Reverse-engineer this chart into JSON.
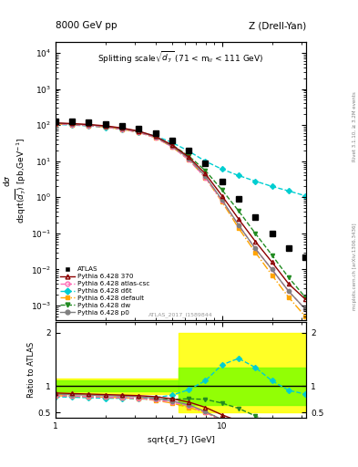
{
  "title_left": "8000 GeV pp",
  "title_right": "Z (Drell-Yan)",
  "plot_title": "Splitting scale $\\sqrt{d_7}$ (71 < m$_{ll}$ < 111 GeV)",
  "xlabel": "sqrt{d_7} [GeV]",
  "ylabel_main": "d$\\sigma$\ndsqrt(d$_7$) [pb,GeV$^{-1}$]",
  "ylabel_ratio": "Ratio to ATLAS",
  "right_label_top": "Rivet 3.1.10, ≥ 3.2M events",
  "right_label_bot": "mcplots.cern.ch [arXiv:1306.3436]",
  "watermark": "ATLAS_2017_I1589844",
  "x_data": [
    1.0,
    1.26,
    1.58,
    2.0,
    2.51,
    3.16,
    3.98,
    5.01,
    6.31,
    7.94,
    10.0,
    12.58,
    15.85,
    19.95,
    25.12,
    31.62
  ],
  "atlas_y": [
    130,
    125,
    118,
    108,
    96,
    80,
    60,
    38,
    20,
    8.5,
    2.8,
    0.9,
    0.28,
    0.1,
    0.038,
    0.022
  ],
  "py370_y": [
    115,
    110,
    104,
    95,
    83,
    68,
    49,
    28,
    13,
    4.5,
    1.1,
    0.25,
    0.06,
    0.016,
    0.004,
    0.0015
  ],
  "atlas_csc_y": [
    108,
    103,
    97,
    88,
    77,
    63,
    45,
    25,
    11,
    3.5,
    0.8,
    0.17,
    0.038,
    0.01,
    0.0025,
    0.0008
  ],
  "d6t_y": [
    105,
    100,
    95,
    87,
    77,
    65,
    50,
    33,
    19,
    10.0,
    6.0,
    4.0,
    2.8,
    2.0,
    1.5,
    1.1
  ],
  "default_y": [
    108,
    103,
    97,
    88,
    77,
    63,
    45,
    25,
    11,
    3.5,
    0.75,
    0.14,
    0.03,
    0.007,
    0.0017,
    0.0005
  ],
  "dw_y": [
    108,
    103,
    97,
    88,
    77,
    63,
    46,
    28,
    14,
    5.5,
    1.6,
    0.42,
    0.1,
    0.025,
    0.006,
    0.0017
  ],
  "p0_y": [
    112,
    107,
    101,
    92,
    81,
    66,
    47,
    26,
    12,
    3.8,
    0.85,
    0.17,
    0.038,
    0.01,
    0.0025,
    0.0008
  ],
  "ratio_370": [
    0.87,
    0.86,
    0.85,
    0.84,
    0.83,
    0.82,
    0.8,
    0.76,
    0.7,
    0.6,
    0.46,
    0.34,
    0.25,
    0.18,
    0.12,
    0.09
  ],
  "ratio_csc": [
    0.82,
    0.81,
    0.8,
    0.79,
    0.78,
    0.77,
    0.74,
    0.7,
    0.63,
    0.5,
    0.36,
    0.24,
    0.17,
    0.12,
    0.08,
    0.06
  ],
  "ratio_d6t": [
    0.8,
    0.79,
    0.78,
    0.77,
    0.77,
    0.77,
    0.78,
    0.83,
    0.93,
    1.1,
    1.4,
    1.52,
    1.35,
    1.1,
    0.92,
    0.85
  ],
  "ratio_default": [
    0.82,
    0.81,
    0.8,
    0.79,
    0.78,
    0.77,
    0.73,
    0.68,
    0.6,
    0.5,
    0.36,
    0.22,
    0.14,
    0.09,
    0.06,
    0.04
  ],
  "ratio_dw": [
    0.82,
    0.81,
    0.8,
    0.79,
    0.78,
    0.76,
    0.75,
    0.75,
    0.76,
    0.75,
    0.68,
    0.58,
    0.44,
    0.3,
    0.2,
    0.12
  ],
  "ratio_p0": [
    0.85,
    0.84,
    0.83,
    0.82,
    0.81,
    0.8,
    0.77,
    0.72,
    0.65,
    0.52,
    0.37,
    0.23,
    0.16,
    0.11,
    0.07,
    0.05
  ],
  "color_atlas": "#000000",
  "color_370": "#8B0000",
  "color_csc": "#FF69B4",
  "color_d6t": "#00CED1",
  "color_default": "#FFA500",
  "color_dw": "#228B22",
  "color_p0": "#808080",
  "xlim": [
    1.0,
    32.0
  ],
  "ylim_main": [
    0.0004,
    20000
  ],
  "ylim_ratio": [
    0.4,
    2.2
  ]
}
